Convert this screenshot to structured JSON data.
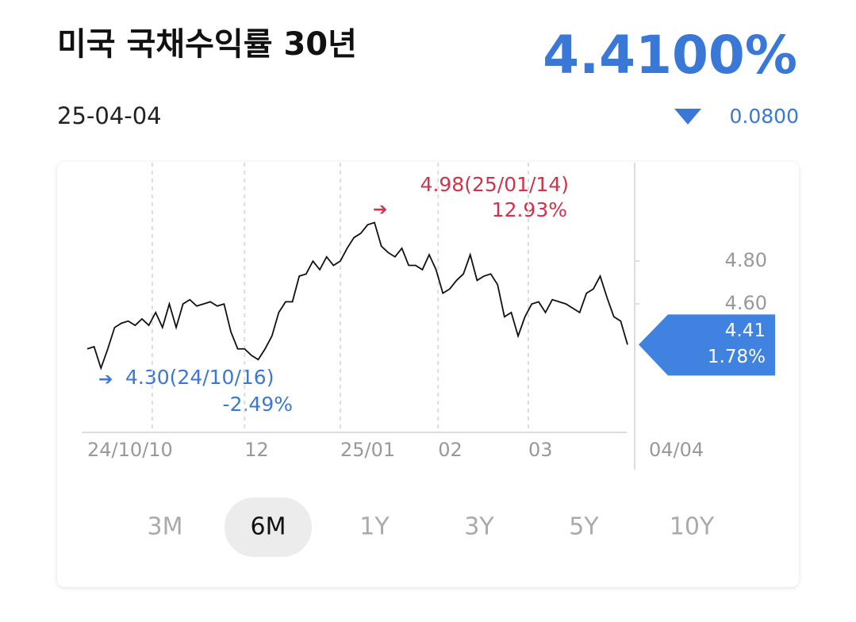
{
  "header": {
    "title": "미국 국채수익률 30년",
    "date": "25-04-04",
    "price": "4.4100%",
    "change": "0.0800"
  },
  "chart_data": {
    "type": "line",
    "color": "#111111",
    "values": [
      4.39,
      4.4,
      4.3,
      4.39,
      4.49,
      4.51,
      4.52,
      4.5,
      4.53,
      4.5,
      4.56,
      4.49,
      4.6,
      4.49,
      4.6,
      4.62,
      4.59,
      4.6,
      4.61,
      4.59,
      4.6,
      4.47,
      4.39,
      4.39,
      4.36,
      4.34,
      4.39,
      4.45,
      4.56,
      4.61,
      4.61,
      4.73,
      4.74,
      4.8,
      4.76,
      4.82,
      4.78,
      4.8,
      4.86,
      4.91,
      4.93,
      4.97,
      4.98,
      4.87,
      4.84,
      4.82,
      4.86,
      4.78,
      4.78,
      4.76,
      4.83,
      4.76,
      4.65,
      4.67,
      4.71,
      4.74,
      4.83,
      4.71,
      4.73,
      4.74,
      4.69,
      4.54,
      4.56,
      4.45,
      4.54,
      4.6,
      4.61,
      4.56,
      4.62,
      4.61,
      4.6,
      4.58,
      4.56,
      4.65,
      4.67,
      4.73,
      4.63,
      4.54,
      4.52,
      4.41
    ],
    "ylim": [
      4.0,
      5.26
    ],
    "yticks": [
      {
        "value": 4.6,
        "label": "4.60"
      },
      {
        "value": 4.8,
        "label": "4.80"
      }
    ],
    "xticks": [
      {
        "value": 9.5,
        "label": "24/10/10"
      },
      {
        "value": 23,
        "label": "12"
      },
      {
        "value": 37,
        "label": "25/01"
      },
      {
        "value": 51.3,
        "label": "02"
      },
      {
        "value": 64.5,
        "label": "03"
      }
    ],
    "x_end_label": "04/04",
    "grid": true,
    "high": {
      "label": "4.98(25/01/14)",
      "change": "12.93%"
    },
    "low": {
      "label": "4.30(24/10/16)",
      "change": "-2.49%"
    },
    "current": {
      "label": "4.41",
      "change": "1.78%"
    }
  },
  "periods": [
    "3M",
    "6M",
    "1Y",
    "3Y",
    "5Y",
    "10Y"
  ],
  "selected_period": 1
}
